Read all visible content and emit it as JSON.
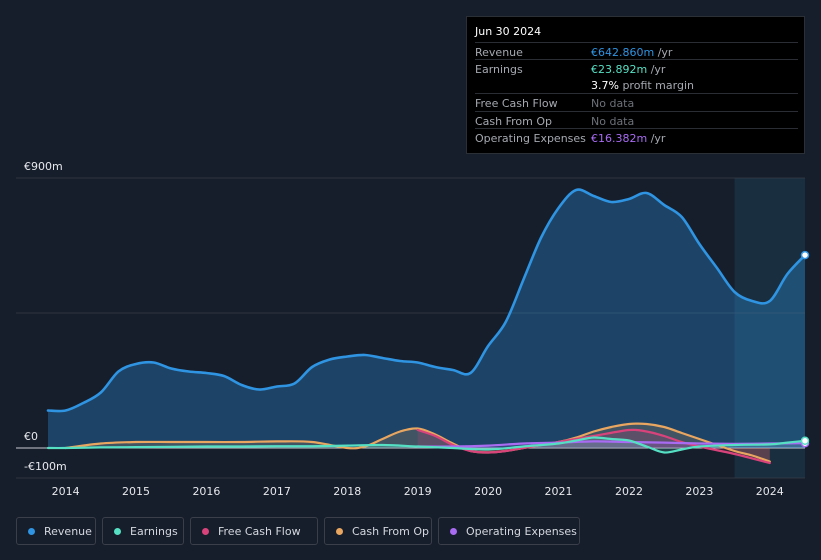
{
  "tooltip": {
    "date": "Jun 30 2024",
    "rows": [
      {
        "label": "Revenue",
        "value": "€642.860m",
        "unit": "/yr"
      },
      {
        "label": "Earnings",
        "value": "€23.892m",
        "unit": "/yr"
      },
      {
        "label": "",
        "value": "3.7%",
        "unit": "profit margin"
      },
      {
        "label": "Free Cash Flow",
        "value": "No data",
        "unit": ""
      },
      {
        "label": "Cash From Op",
        "value": "No data",
        "unit": ""
      },
      {
        "label": "Operating Expenses",
        "value": "€16.382m",
        "unit": "/yr"
      }
    ]
  },
  "legend": [
    "Revenue",
    "Earnings",
    "Free Cash Flow",
    "Cash From Op",
    "Operating Expenses"
  ],
  "colors": {
    "revenue": "#2f94e2",
    "earnings": "#55e0c4",
    "fcf": "#d9437b",
    "cfo": "#e8a660",
    "opex": "#a86bf2",
    "grid": "#3a3f48",
    "background": "#161d2b"
  },
  "chart_data": {
    "type": "area",
    "title": "",
    "xlabel": "",
    "ylabel": "",
    "y_ticks": [
      "€900m",
      "€0",
      "-€100m"
    ],
    "x_ticks": [
      "2014",
      "2015",
      "2016",
      "2017",
      "2018",
      "2019",
      "2020",
      "2021",
      "2022",
      "2023",
      "2024"
    ],
    "xlim": [
      2013.75,
      2024.5
    ],
    "ylim": [
      -100,
      900
    ],
    "highlight_from": 2023.5,
    "series": [
      {
        "name": "Revenue",
        "key": "revenue",
        "x": [
          2013.75,
          2014.0,
          2014.25,
          2014.5,
          2014.75,
          2015.0,
          2015.25,
          2015.5,
          2015.75,
          2016.0,
          2016.25,
          2016.5,
          2016.75,
          2017.0,
          2017.25,
          2017.5,
          2017.75,
          2018.0,
          2018.25,
          2018.5,
          2018.75,
          2019.0,
          2019.25,
          2019.5,
          2019.75,
          2020.0,
          2020.25,
          2020.5,
          2020.75,
          2021.0,
          2021.25,
          2021.5,
          2021.75,
          2022.0,
          2022.25,
          2022.5,
          2022.75,
          2023.0,
          2023.25,
          2023.5,
          2023.75,
          2024.0,
          2024.25,
          2024.5
        ],
        "values": [
          125,
          125,
          150,
          185,
          255,
          280,
          285,
          265,
          255,
          250,
          240,
          210,
          195,
          205,
          215,
          270,
          295,
          305,
          310,
          300,
          290,
          285,
          270,
          260,
          250,
          340,
          420,
          560,
          700,
          800,
          860,
          840,
          820,
          830,
          850,
          810,
          770,
          680,
          600,
          520,
          490,
          490,
          580,
          643
        ]
      },
      {
        "name": "Earnings",
        "key": "earnings",
        "x": [
          2013.75,
          2014.0,
          2014.5,
          2015.0,
          2015.5,
          2016.0,
          2016.5,
          2017.0,
          2017.5,
          2018.0,
          2018.5,
          2019.0,
          2019.5,
          2020.0,
          2020.5,
          2021.0,
          2021.25,
          2021.5,
          2021.75,
          2022.0,
          2022.25,
          2022.5,
          2022.75,
          2023.0,
          2023.5,
          2024.0,
          2024.25,
          2024.5
        ],
        "values": [
          0,
          0,
          2,
          3,
          4,
          5,
          5,
          6,
          6,
          8,
          10,
          5,
          0,
          -5,
          5,
          15,
          25,
          35,
          30,
          25,
          5,
          -15,
          -5,
          5,
          10,
          12,
          18,
          24
        ]
      },
      {
        "name": "Free Cash Flow",
        "key": "fcf",
        "x": [
          2019.0,
          2019.25,
          2019.5,
          2019.75,
          2020.0,
          2020.25,
          2020.5,
          2021.0,
          2021.5,
          2022.0,
          2022.25,
          2022.5,
          2022.75,
          2023.0,
          2023.5,
          2024.0
        ],
        "values": [
          60,
          40,
          10,
          -10,
          -15,
          -10,
          0,
          20,
          40,
          60,
          55,
          40,
          20,
          5,
          -20,
          -50
        ]
      },
      {
        "name": "Cash From Op",
        "key": "cfo",
        "x": [
          2014.0,
          2014.5,
          2015.0,
          2015.5,
          2016.0,
          2016.5,
          2017.0,
          2017.5,
          2018.0,
          2018.25,
          2018.5,
          2018.75,
          2019.0,
          2019.25,
          2019.5,
          2019.75,
          2020.0,
          2020.25,
          2020.5,
          2020.75,
          2021.0,
          2021.25,
          2021.5,
          2021.75,
          2022.0,
          2022.25,
          2022.5,
          2022.75,
          2023.0,
          2023.25,
          2023.5,
          2023.75,
          2024.0
        ],
        "values": [
          0,
          15,
          20,
          20,
          20,
          20,
          22,
          20,
          0,
          5,
          30,
          55,
          65,
          45,
          15,
          -10,
          -15,
          -10,
          0,
          10,
          20,
          35,
          55,
          70,
          80,
          80,
          70,
          50,
          30,
          10,
          -10,
          -25,
          -45
        ]
      },
      {
        "name": "Operating Expenses",
        "key": "opex",
        "x": [
          2019.0,
          2019.5,
          2020.0,
          2020.5,
          2021.0,
          2021.5,
          2022.0,
          2022.5,
          2023.0,
          2023.5,
          2024.0,
          2024.5
        ],
        "values": [
          5,
          5,
          8,
          15,
          18,
          22,
          20,
          18,
          15,
          14,
          15,
          16
        ]
      }
    ]
  }
}
